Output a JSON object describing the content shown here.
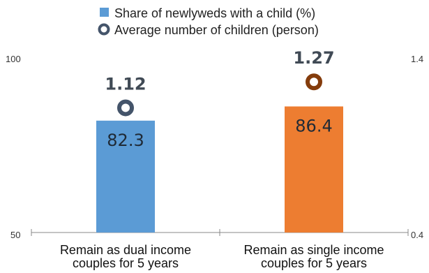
{
  "chart_data": {
    "type": "bar",
    "categories": [
      [
        "Remain as dual income",
        "couples for 5 years"
      ],
      [
        "Remain as single income",
        "couples for 5 years"
      ]
    ],
    "series": [
      {
        "name": "Share of newlyweds with a child (%)",
        "kind": "bar",
        "axis": "left",
        "values": [
          82.3,
          86.4
        ],
        "value_labels": [
          "82.3",
          "86.4"
        ],
        "colors": [
          "#5b9bd5",
          "#ed7d31"
        ]
      },
      {
        "name": "Average number of children (person)",
        "kind": "marker",
        "axis": "right",
        "values": [
          1.12,
          1.27
        ],
        "value_labels": [
          "1.12",
          "1.27"
        ],
        "colors": [
          "#44546a",
          "#843c0c"
        ]
      }
    ],
    "left_axis": {
      "range": [
        50,
        100
      ],
      "tick_labels": [
        "50",
        "100"
      ]
    },
    "right_axis": {
      "range": [
        0.4,
        1.4
      ],
      "tick_labels": [
        "0.4",
        "1.4"
      ]
    },
    "legend_position": "top-center",
    "legend_colors": [
      "#5b9bd5",
      "#44546a"
    ],
    "grid": false
  }
}
